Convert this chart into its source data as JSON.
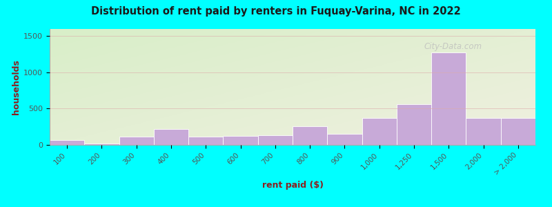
{
  "title": "Distribution of rent paid by renters in Fuquay-Varina, NC in 2022",
  "xlabel": "rent paid ($)",
  "ylabel": "households",
  "categories": [
    "100",
    "200",
    "300",
    "400",
    "500",
    "600",
    "700",
    "800",
    "900",
    "1,000",
    "1,250",
    "1,500",
    "2,000",
    "> 2,000"
  ],
  "values": [
    65,
    15,
    110,
    215,
    115,
    120,
    130,
    255,
    155,
    370,
    560,
    1275,
    375,
    375
  ],
  "bar_color": "#c8aad8",
  "bar_edge_color": "#ffffff",
  "background_color": "#00ffff",
  "grad_top_left": "#d8eec8",
  "grad_bottom_right": "#f0f0e0",
  "title_color": "#1a1a1a",
  "axis_label_color": "#8b2020",
  "tick_label_color": "#555555",
  "yticks": [
    0,
    500,
    1000,
    1500
  ],
  "ylim": [
    0,
    1600
  ],
  "grid_color": "#ddaaaa",
  "watermark": "City-Data.com"
}
